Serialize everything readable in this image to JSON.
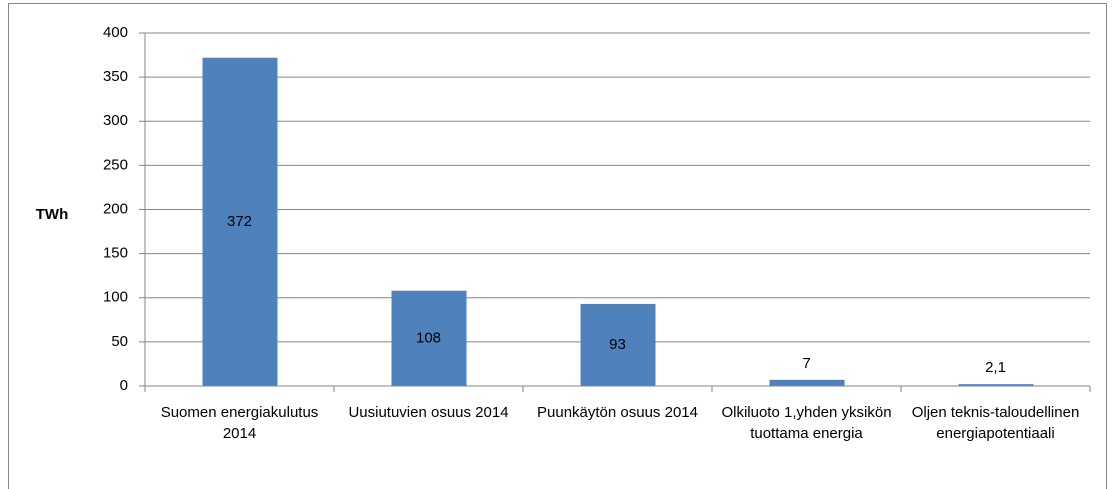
{
  "chart_data": {
    "type": "bar",
    "y_label": "TWh",
    "categories": [
      "Suomen energiakulutus 2014",
      "Uusiutuvien osuus 2014",
      "Puunkäytön osuus 2014",
      "Olkiluoto 1,yhden yksikön tuottama energia",
      "Oljen teknis-taloudellinen energiapotentiaali"
    ],
    "values": [
      372,
      108,
      93,
      7,
      2.1
    ],
    "value_labels": [
      "372",
      "108",
      "93",
      "7",
      "2,1"
    ],
    "color": "#4f81bd",
    "ylim": [
      0,
      400
    ],
    "yticks": [
      0,
      50,
      100,
      150,
      200,
      250,
      300,
      350,
      400
    ],
    "grid": true
  }
}
